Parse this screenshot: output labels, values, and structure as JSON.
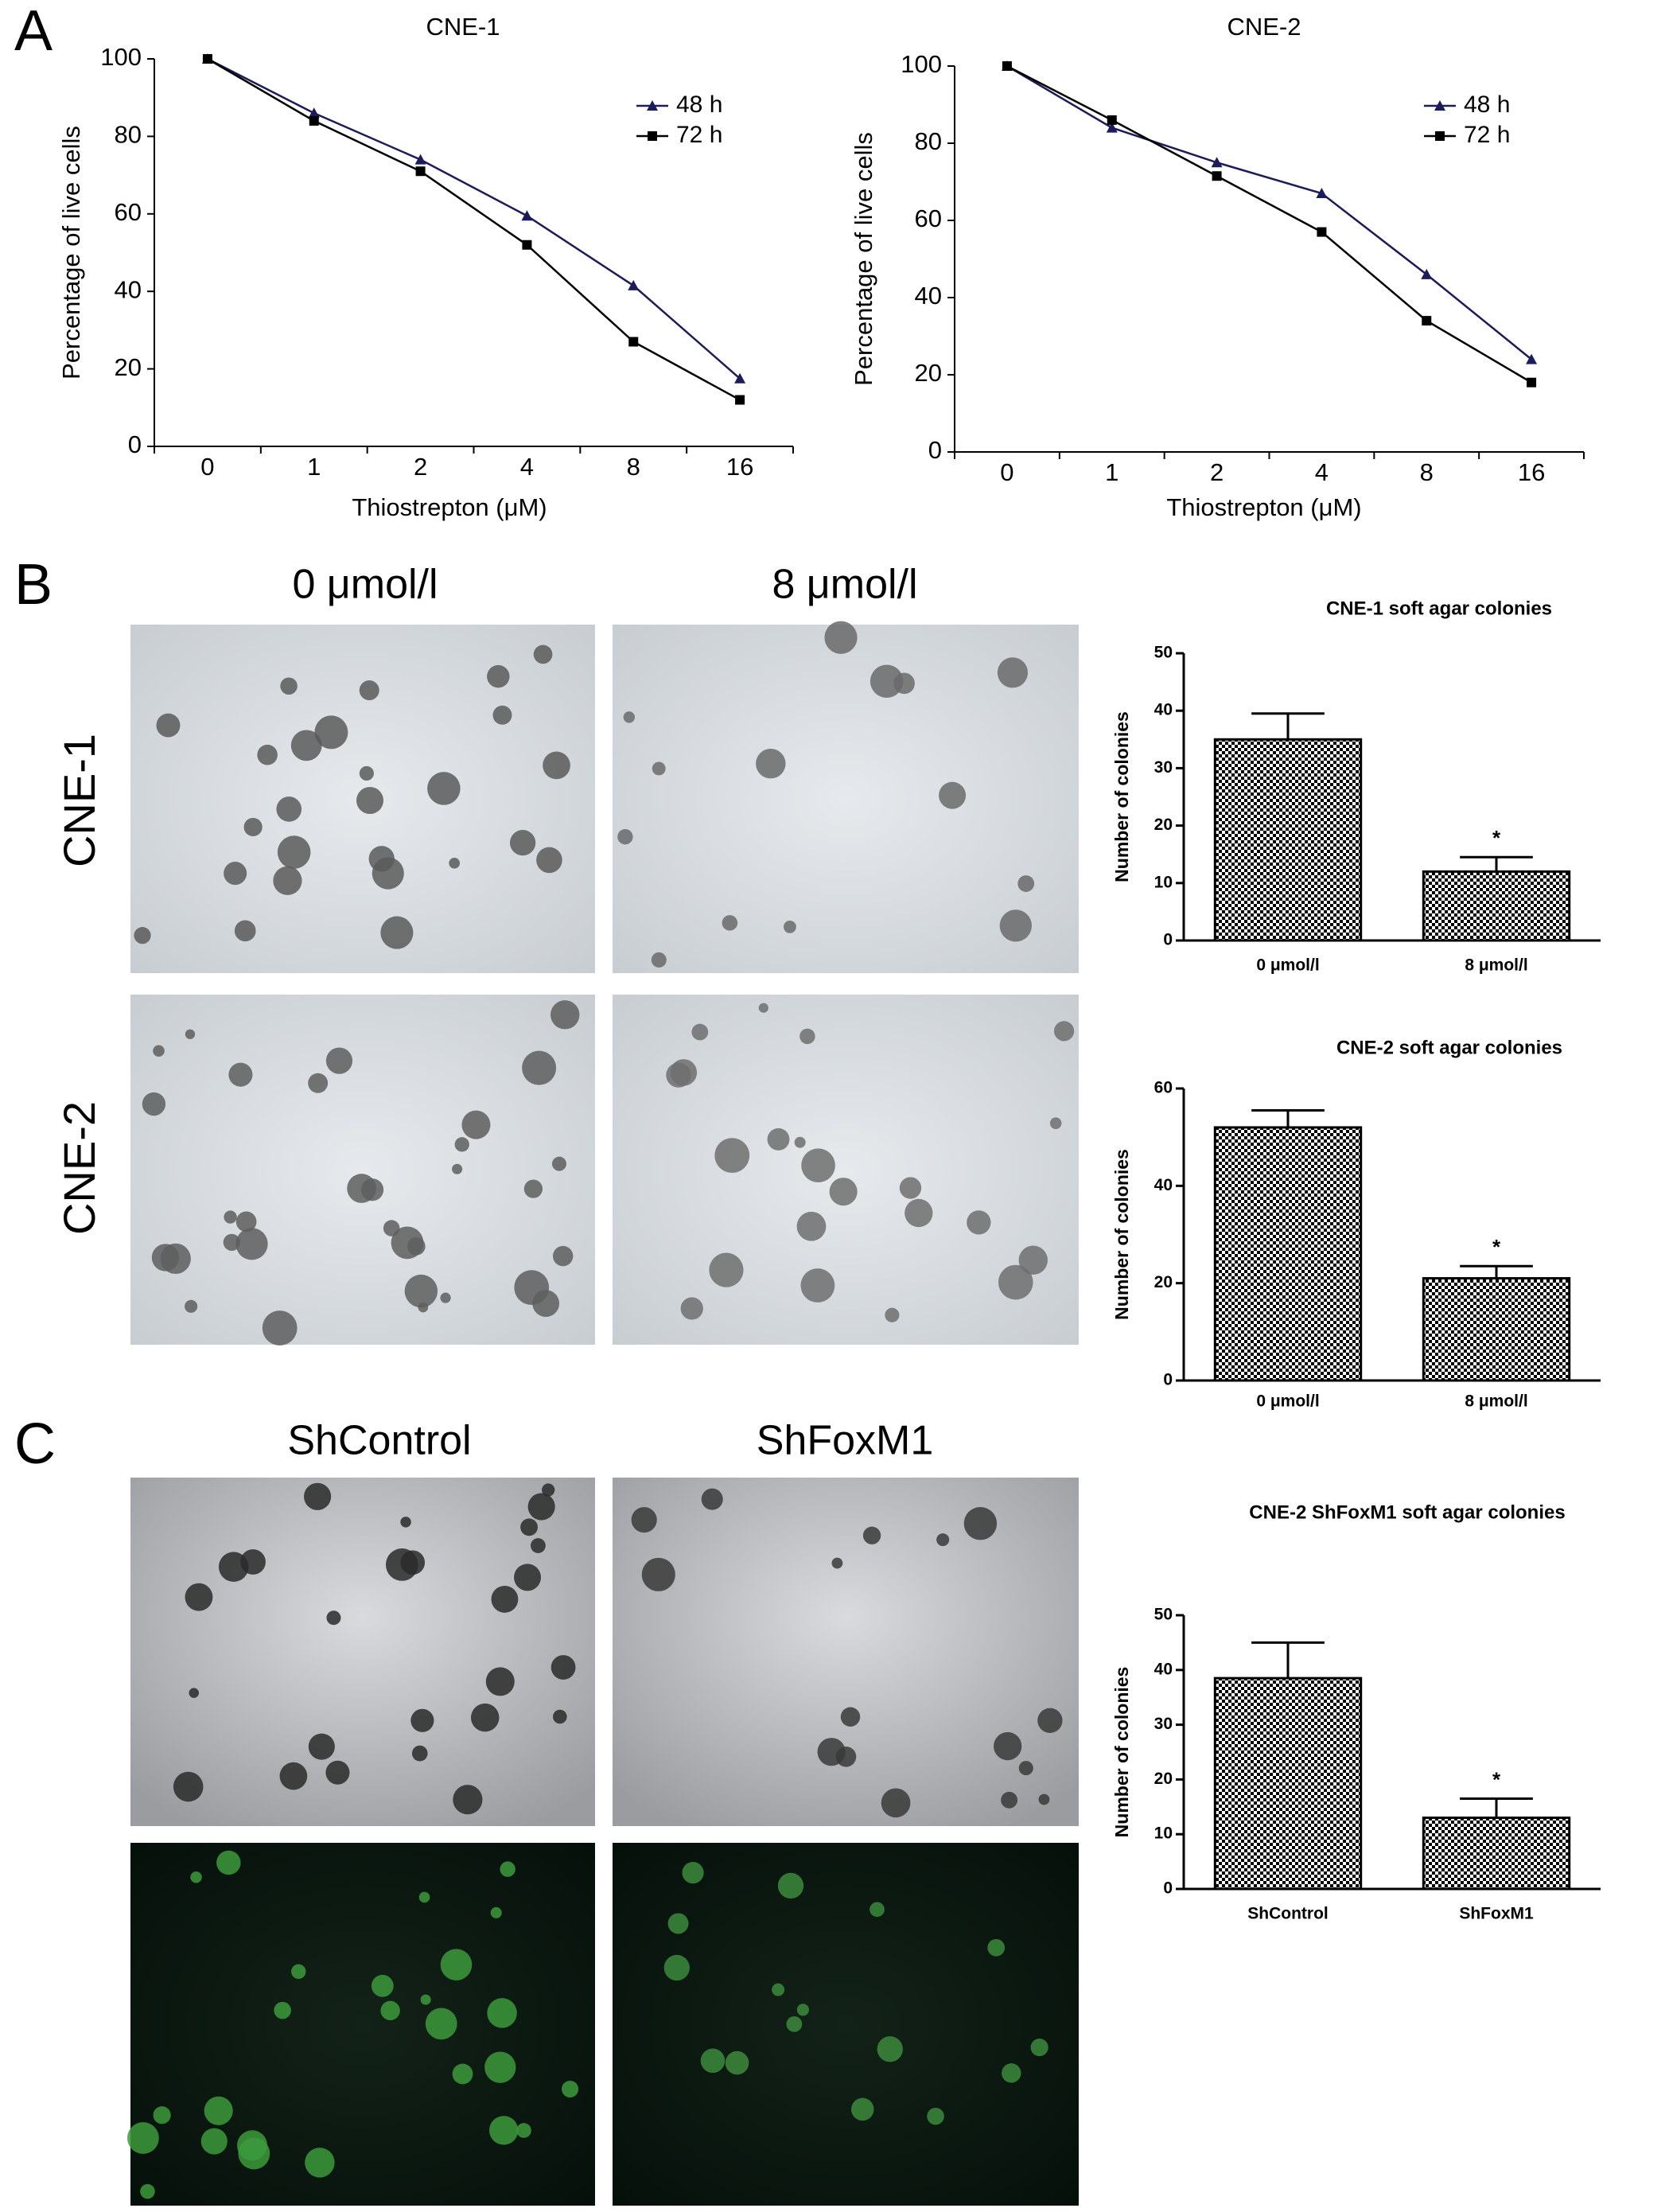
{
  "panels": {
    "labels": [
      "A",
      "B",
      "C"
    ],
    "b_columns": [
      "0 μmol/l",
      "8 μmol/l"
    ],
    "b_rows": [
      "CNE-1",
      "CNE-2"
    ],
    "c_columns": [
      "ShControl",
      "ShFoxM1"
    ]
  },
  "chart_data": [
    {
      "type": "line",
      "title": "CNE-1",
      "x_label": "Thiostrepton (μM)",
      "y_label": "Percentage of live cells",
      "categories": [
        "0",
        "1",
        "2",
        "4",
        "8",
        "16"
      ],
      "ylim": [
        0,
        100
      ],
      "yticks": [
        0,
        20,
        40,
        60,
        80,
        100
      ],
      "series": [
        {
          "name": "48 h",
          "color": "#1c1c5a",
          "marker": "triangle",
          "values": [
            100,
            86,
            74,
            59.5,
            41.5,
            17.5
          ]
        },
        {
          "name": "72 h",
          "color": "#000000",
          "marker": "square",
          "values": [
            100,
            84,
            71,
            52,
            27,
            12
          ]
        }
      ]
    },
    {
      "type": "line",
      "title": "CNE-2",
      "x_label": "Thiostrepton (μM)",
      "y_label": "Percentage of live cells",
      "categories": [
        "0",
        "1",
        "2",
        "4",
        "8",
        "16"
      ],
      "ylim": [
        0,
        100
      ],
      "yticks": [
        0,
        20,
        40,
        60,
        80,
        100
      ],
      "series": [
        {
          "name": "48 h",
          "color": "#1c1c5a",
          "marker": "triangle",
          "values": [
            100,
            84,
            75,
            67,
            46,
            24
          ]
        },
        {
          "name": "72 h",
          "color": "#000000",
          "marker": "square",
          "values": [
            100,
            86,
            71.5,
            57,
            34,
            18
          ]
        }
      ]
    },
    {
      "type": "bar",
      "title": "CNE-1 soft agar  colonies",
      "y_label": "Number of colonies",
      "categories": [
        "0 μmol/l",
        "8 μmol/l"
      ],
      "values": [
        35,
        12
      ],
      "errors": [
        4.5,
        2.5
      ],
      "significance": [
        null,
        "*"
      ],
      "ylim": [
        0,
        50
      ],
      "yticks": [
        0,
        10,
        20,
        30,
        40,
        50
      ]
    },
    {
      "type": "bar",
      "title": "CNE-2 soft agar  colonies",
      "y_label": "Number of colonies",
      "categories": [
        "0 μmol/l",
        "8 μmol/l"
      ],
      "values": [
        52,
        21
      ],
      "errors": [
        3.5,
        2.5
      ],
      "significance": [
        null,
        "*"
      ],
      "ylim": [
        0,
        60
      ],
      "yticks": [
        0,
        20,
        40,
        60
      ]
    },
    {
      "type": "bar",
      "title": "CNE-2 ShFoxM1 soft agar colonies",
      "y_label": "Number of colonies",
      "categories": [
        "ShControl",
        "ShFoxM1"
      ],
      "values": [
        38.5,
        13
      ],
      "errors": [
        6.5,
        3.5
      ],
      "significance": [
        null,
        "*"
      ],
      "ylim": [
        0,
        50
      ],
      "yticks": [
        0,
        10,
        20,
        30,
        40,
        50
      ]
    }
  ]
}
